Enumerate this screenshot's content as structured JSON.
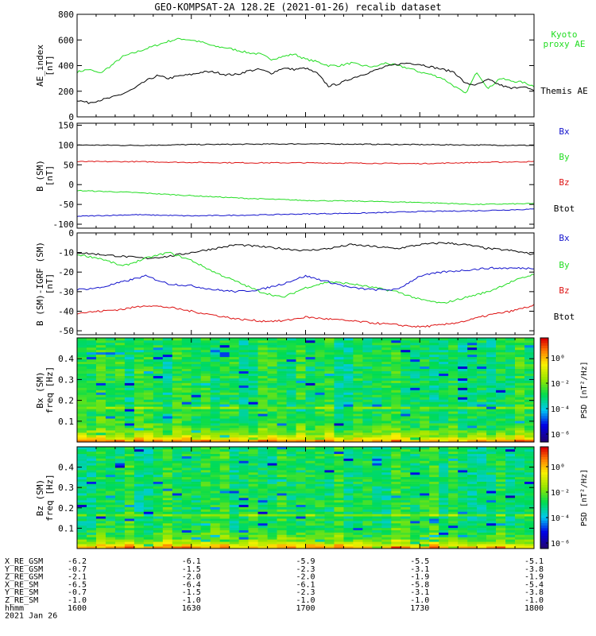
{
  "title": "GEO-KOMPSAT-2A 128.2E (2021-01-26) recalib dataset",
  "colors": {
    "black": "#000000",
    "green": "#22dd22",
    "blue": "#1111cc",
    "red": "#dd1111"
  },
  "panels": [
    {
      "id": "ae",
      "ylabel": [
        "AE_index",
        "[nT]"
      ],
      "yticks": [
        0,
        200,
        400,
        600,
        800
      ],
      "ylim": [
        0,
        800
      ],
      "legend": [
        {
          "lines": [
            "Kyoto",
            "proxy AE"
          ],
          "color": "#22dd22"
        },
        {
          "lines": [
            "Themis AE"
          ],
          "color": "#000000"
        }
      ]
    },
    {
      "id": "bsm",
      "ylabel": [
        "B (SM)",
        "[nT]"
      ],
      "yticks": [
        -100,
        -50,
        0,
        50,
        100,
        150
      ],
      "ylim": [
        -110,
        155
      ],
      "legend": [
        {
          "lines": [
            "Bx"
          ],
          "color": "#1111cc"
        },
        {
          "lines": [
            "By"
          ],
          "color": "#22dd22"
        },
        {
          "lines": [
            "Bz"
          ],
          "color": "#dd1111"
        },
        {
          "lines": [
            "Btot"
          ],
          "color": "#000000"
        }
      ]
    },
    {
      "id": "bigrf",
      "ylabel": [
        "B (SM)-IGRF (SM)",
        "[nT]"
      ],
      "yticks": [
        -50,
        -40,
        -30,
        -20,
        -10,
        0
      ],
      "ylim": [
        -52,
        0
      ],
      "legend": [
        {
          "lines": [
            "Bx"
          ],
          "color": "#1111cc"
        },
        {
          "lines": [
            "By"
          ],
          "color": "#22dd22"
        },
        {
          "lines": [
            "Bz"
          ],
          "color": "#dd1111"
        },
        {
          "lines": [
            "Btot"
          ],
          "color": "#000000"
        }
      ]
    },
    {
      "id": "specx",
      "ylabel": [
        "Bx (SM)",
        "freq [Hz]"
      ],
      "yticks": [
        0.1,
        0.2,
        0.3,
        0.4
      ],
      "ylim": [
        0,
        0.5
      ],
      "colorbar_label": "PSD [nT²/Hz]"
    },
    {
      "id": "specz",
      "ylabel": [
        "Bz (SM)",
        "freq [Hz]"
      ],
      "yticks": [
        0.1,
        0.2,
        0.3,
        0.4
      ],
      "ylim": [
        0,
        0.5
      ],
      "colorbar_label": "PSD [nT²/Hz]"
    }
  ],
  "colorbar_ticks": [
    "10⁰",
    "10⁻²",
    "10⁻⁴",
    "10⁻⁶"
  ],
  "chart_data": [
    {
      "type": "line",
      "title": "GEO-KOMPSAT-2A 128.2E (2021-01-26) recalib dataset",
      "ylabel": "AE_index [nT]",
      "x_unit": "minutes after 16:00 UT",
      "xlim": [
        0,
        120
      ],
      "ylim": [
        0,
        800
      ],
      "series": [
        {
          "name": "Kyoto proxy AE",
          "color": "#22dd22",
          "x": [
            0,
            3,
            6,
            9,
            12,
            15,
            18,
            21,
            24,
            27,
            30,
            33,
            36,
            39,
            42,
            45,
            48,
            51,
            54,
            57,
            60,
            63,
            66,
            69,
            72,
            75,
            78,
            81,
            84,
            87,
            90,
            93,
            96,
            99,
            102,
            105,
            108,
            111,
            114,
            117,
            120
          ],
          "y": [
            350,
            370,
            340,
            400,
            470,
            500,
            530,
            560,
            590,
            610,
            600,
            580,
            550,
            540,
            520,
            500,
            490,
            450,
            470,
            490,
            450,
            430,
            400,
            400,
            420,
            400,
            390,
            420,
            400,
            380,
            350,
            330,
            300,
            240,
            180,
            350,
            220,
            300,
            280,
            270,
            240
          ]
        },
        {
          "name": "Themis AE",
          "color": "#000000",
          "x": [
            0,
            3,
            6,
            9,
            12,
            15,
            18,
            21,
            24,
            27,
            30,
            33,
            36,
            39,
            42,
            45,
            48,
            51,
            54,
            57,
            60,
            63,
            66,
            69,
            72,
            75,
            78,
            81,
            84,
            87,
            90,
            93,
            96,
            99,
            102,
            105,
            108,
            111,
            114,
            117,
            120
          ],
          "y": [
            130,
            110,
            130,
            150,
            180,
            220,
            280,
            320,
            300,
            320,
            330,
            350,
            350,
            330,
            330,
            360,
            370,
            340,
            380,
            370,
            380,
            340,
            240,
            260,
            300,
            330,
            360,
            390,
            410,
            420,
            410,
            390,
            370,
            350,
            260,
            250,
            290,
            250,
            220,
            240,
            200
          ]
        }
      ]
    },
    {
      "type": "line",
      "ylabel": "B (SM) [nT]",
      "x_unit": "minutes after 16:00 UT",
      "xlim": [
        0,
        120
      ],
      "ylim": [
        -110,
        155
      ],
      "series": [
        {
          "name": "Btot",
          "color": "#000000",
          "x": [
            0,
            15,
            30,
            45,
            60,
            75,
            90,
            105,
            120
          ],
          "y": [
            100,
            99,
            101,
            102,
            103,
            102,
            101,
            100,
            99
          ]
        },
        {
          "name": "Bz",
          "color": "#dd1111",
          "x": [
            0,
            15,
            30,
            45,
            60,
            75,
            90,
            105,
            120
          ],
          "y": [
            58,
            58,
            56,
            55,
            55,
            54,
            53,
            56,
            58
          ]
        },
        {
          "name": "By",
          "color": "#22dd22",
          "x": [
            0,
            15,
            30,
            45,
            60,
            75,
            90,
            105,
            120
          ],
          "y": [
            -15,
            -20,
            -28,
            -35,
            -40,
            -42,
            -45,
            -50,
            -48
          ]
        },
        {
          "name": "Bx",
          "color": "#1111cc",
          "x": [
            0,
            15,
            30,
            45,
            60,
            75,
            90,
            105,
            120
          ],
          "y": [
            -80,
            -76,
            -79,
            -77,
            -74,
            -72,
            -68,
            -66,
            -62
          ]
        }
      ]
    },
    {
      "type": "line",
      "ylabel": "B (SM)-IGRF (SM) [nT]",
      "x_unit": "minutes after 16:00 UT",
      "xlim": [
        0,
        120
      ],
      "ylim": [
        -52,
        0
      ],
      "series": [
        {
          "name": "Btot",
          "color": "#000000",
          "x": [
            0,
            6,
            12,
            18,
            24,
            30,
            36,
            42,
            48,
            54,
            60,
            66,
            72,
            78,
            84,
            90,
            96,
            102,
            108,
            114,
            120
          ],
          "y": [
            -10,
            -11,
            -12,
            -13,
            -12,
            -10,
            -8,
            -6,
            -7,
            -8,
            -9,
            -8,
            -6,
            -7,
            -8,
            -6,
            -5,
            -6,
            -8,
            -9,
            -11
          ]
        },
        {
          "name": "By",
          "color": "#22dd22",
          "x": [
            0,
            6,
            12,
            18,
            24,
            30,
            36,
            42,
            48,
            54,
            60,
            66,
            72,
            78,
            84,
            90,
            96,
            102,
            108,
            114,
            120
          ],
          "y": [
            -11,
            -13,
            -17,
            -13,
            -10,
            -14,
            -20,
            -25,
            -30,
            -33,
            -28,
            -25,
            -26,
            -28,
            -30,
            -34,
            -36,
            -33,
            -30,
            -25,
            -21
          ]
        },
        {
          "name": "Bx",
          "color": "#1111cc",
          "x": [
            0,
            6,
            12,
            18,
            24,
            30,
            36,
            42,
            48,
            54,
            60,
            66,
            72,
            78,
            84,
            90,
            96,
            102,
            108,
            114,
            120
          ],
          "y": [
            -29,
            -28,
            -25,
            -22,
            -26,
            -27,
            -29,
            -30,
            -29,
            -26,
            -22,
            -25,
            -28,
            -29,
            -29,
            -22,
            -20,
            -19,
            -18,
            -18,
            -18
          ]
        },
        {
          "name": "Bz",
          "color": "#dd1111",
          "x": [
            0,
            6,
            12,
            18,
            24,
            30,
            36,
            42,
            48,
            54,
            60,
            66,
            72,
            78,
            84,
            90,
            96,
            102,
            108,
            114,
            120
          ],
          "y": [
            -41,
            -40,
            -39,
            -37,
            -38,
            -40,
            -42,
            -44,
            -45,
            -45,
            -43,
            -44,
            -45,
            -46,
            -47,
            -48,
            -47,
            -45,
            -42,
            -40,
            -37
          ]
        }
      ]
    },
    {
      "type": "heatmap",
      "ylabel": "Bx (SM) freq [Hz]",
      "x_unit": "minutes after 16:00 UT",
      "xlim": [
        0,
        120
      ],
      "ylim": [
        0,
        0.5
      ],
      "colorbar": "PSD [nT²/Hz]",
      "colorbar_ticks": [
        "10⁰",
        "10⁻²",
        "10⁻⁴",
        "10⁻⁶"
      ]
    },
    {
      "type": "heatmap",
      "ylabel": "Bz (SM) freq [Hz]",
      "x_unit": "minutes after 16:00 UT",
      "xlim": [
        0,
        120
      ],
      "ylim": [
        0,
        0.5
      ],
      "colorbar": "PSD [nT²/Hz]",
      "colorbar_ticks": [
        "10⁰",
        "10⁻²",
        "10⁻⁴",
        "10⁻⁶"
      ]
    }
  ],
  "ephemeris": {
    "row_labels": [
      "X_RE_GSM",
      "Y_RE_GSM",
      "Z_RE_GSM",
      "X_RE_SM",
      "Y_RE_SM",
      "Z_RE_SM",
      "hhmm",
      "2021 Jan 26"
    ],
    "columns": [
      [
        "-6.2",
        "-0.7",
        "-2.1",
        "-6.5",
        "-0.7",
        "-1.0",
        "1600"
      ],
      [
        "-6.1",
        "-1.5",
        "-2.0",
        "-6.4",
        "-1.5",
        "-1.0",
        "1630"
      ],
      [
        "-5.9",
        "-2.3",
        "-2.0",
        "-6.1",
        "-2.3",
        "-1.0",
        "1700"
      ],
      [
        "-5.5",
        "-3.1",
        "-1.9",
        "-5.8",
        "-3.1",
        "-1.0",
        "1730"
      ],
      [
        "-5.1",
        "-3.8",
        "-1.9",
        "-5.4",
        "-3.8",
        "-1.0",
        "1800"
      ]
    ]
  }
}
